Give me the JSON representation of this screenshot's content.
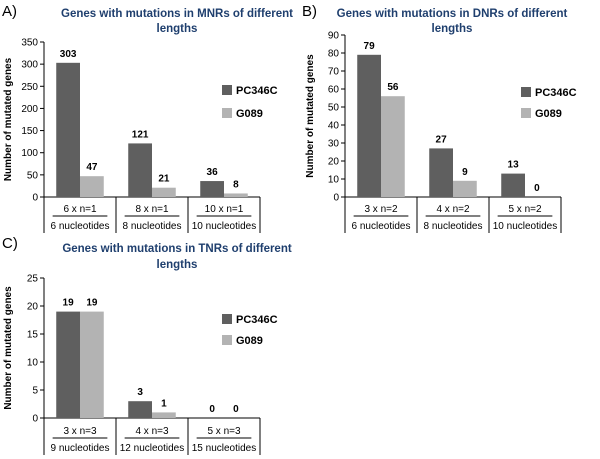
{
  "chart_data": [
    {
      "type": "bar",
      "panel": "A)",
      "title": "Genes with mutations in MNRs of different lengths",
      "title_lines": [
        "Genes with mutations in MNRs of different",
        "lengths"
      ],
      "ylabel": "Number of mutated genes",
      "ylim": [
        0,
        350
      ],
      "yticks": [
        0,
        50,
        100,
        150,
        200,
        250,
        300,
        350
      ],
      "categories": [
        "6 x n=1",
        "8 x n=1",
        "10 x n=1"
      ],
      "subcategories": [
        "6 nucleotides",
        "8 nucleotides",
        "10 nucleotides"
      ],
      "series": [
        {
          "name": "PC346C",
          "values": [
            303,
            121,
            36
          ]
        },
        {
          "name": "G089",
          "values": [
            47,
            21,
            8
          ]
        }
      ]
    },
    {
      "type": "bar",
      "panel": "B)",
      "title": "Genes with mutations in DNRs of different lengths",
      "title_lines": [
        "Genes with mutations in DNRs of different",
        "lengths"
      ],
      "ylabel": "Number of mutated genes",
      "ylim": [
        0,
        90
      ],
      "yticks": [
        0,
        10,
        20,
        30,
        40,
        50,
        60,
        70,
        80,
        90
      ],
      "categories": [
        "3 x n=2",
        "4 x n=2",
        "5 x n=2"
      ],
      "subcategories": [
        "6 nucleotides",
        "8 nucleotides",
        "10 nucleotides"
      ],
      "series": [
        {
          "name": "PC346C",
          "values": [
            79,
            27,
            13
          ]
        },
        {
          "name": "G089",
          "values": [
            56,
            9,
            0
          ]
        }
      ]
    },
    {
      "type": "bar",
      "panel": "C)",
      "title": "Genes with mutations in TNRs of different lengths",
      "title_lines": [
        "Genes with mutations in TNRs of different",
        "lengths"
      ],
      "ylabel": "Number of mutated genes",
      "ylim": [
        0,
        25
      ],
      "yticks": [
        0,
        5,
        10,
        15,
        20,
        25
      ],
      "categories": [
        "3 x n=3",
        "4 x n=3",
        "5 x n=3"
      ],
      "subcategories": [
        "9 nucleotides",
        "12 nucleotides",
        "15 nucleotides"
      ],
      "series": [
        {
          "name": "PC346C",
          "values": [
            19,
            3,
            0
          ]
        },
        {
          "name": "G089",
          "values": [
            19,
            1,
            0
          ]
        }
      ]
    }
  ],
  "colors": {
    "PC346C": "#5f5f5f",
    "G089": "#b3b3b3",
    "title": "#1f3f6e"
  }
}
